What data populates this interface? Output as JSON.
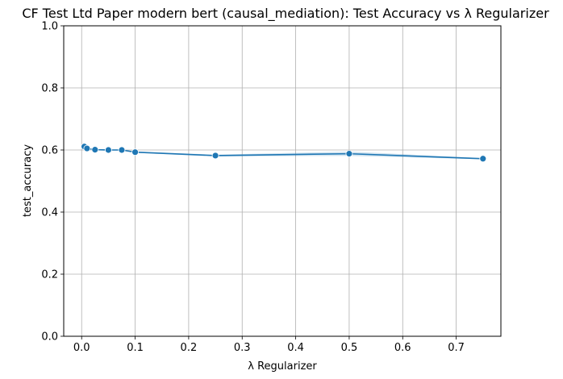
{
  "chart_data": {
    "type": "line",
    "title": "CF Test Ltd Paper modern bert (causal_mediation): Test Accuracy vs λ Regularizer",
    "xlabel": "λ Regularizer",
    "ylabel": "test_accuracy",
    "xlim": [
      -0.0335,
      0.7835
    ],
    "ylim": [
      0.0,
      1.0
    ],
    "xticks": [
      0.0,
      0.1,
      0.2,
      0.3,
      0.4,
      0.5,
      0.6,
      0.7
    ],
    "xtick_labels": [
      "0.0",
      "0.1",
      "0.2",
      "0.3",
      "0.4",
      "0.5",
      "0.6",
      "0.7"
    ],
    "yticks": [
      0.0,
      0.2,
      0.4,
      0.6,
      0.8,
      1.0
    ],
    "ytick_labels": [
      "0.0",
      "0.2",
      "0.4",
      "0.6",
      "0.8",
      "1.0"
    ],
    "grid": true,
    "series": [
      {
        "color": "#1f77b4",
        "x": [
          0.005,
          0.01,
          0.025,
          0.05,
          0.075,
          0.1,
          0.25,
          0.5,
          0.75
        ],
        "values": [
          0.611,
          0.605,
          0.601,
          0.6,
          0.6,
          0.593,
          0.582,
          0.588,
          0.572
        ],
        "ci_low": [
          0.609,
          0.603,
          0.599,
          0.598,
          0.598,
          0.591,
          0.579,
          0.581,
          0.57
        ],
        "ci_high": [
          0.613,
          0.607,
          0.603,
          0.602,
          0.602,
          0.595,
          0.585,
          0.595,
          0.574
        ]
      }
    ]
  }
}
